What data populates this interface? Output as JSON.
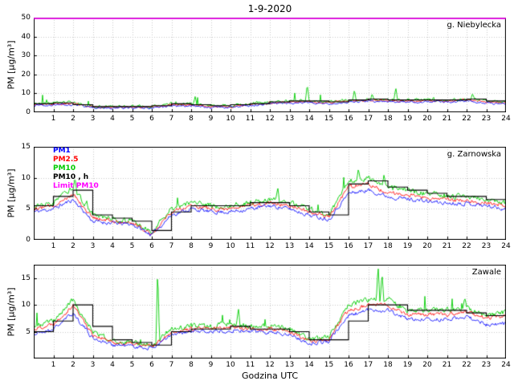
{
  "title": "1-9-2020",
  "xlabel": "Godzina UTC",
  "ylabel": "PM [µg/m³]",
  "legend": {
    "items": [
      {
        "label": "PM1",
        "color": "#0000ff"
      },
      {
        "label": "PM2.5",
        "color": "#ff0000"
      },
      {
        "label": "PM10",
        "color": "#00cc00"
      },
      {
        "label": "PM10 , h",
        "color": "#000000"
      },
      {
        "label": "Limit PM10",
        "color": "#ff00ff"
      }
    ]
  },
  "chart_data": [
    {
      "type": "line",
      "station": "g. Niebylecka",
      "xlim": [
        0,
        24
      ],
      "ylim": [
        0,
        50
      ],
      "yticks": [
        0,
        10,
        20,
        30,
        40,
        50
      ],
      "xticks": [
        1,
        2,
        3,
        4,
        5,
        6,
        7,
        8,
        9,
        10,
        11,
        12,
        13,
        14,
        15,
        16,
        17,
        18,
        19,
        20,
        21,
        22,
        23,
        24
      ],
      "x_hours": [
        0,
        1,
        2,
        3,
        4,
        5,
        6,
        7,
        8,
        9,
        10,
        11,
        12,
        13,
        14,
        15,
        16,
        17,
        18,
        19,
        20,
        21,
        22,
        23,
        24
      ],
      "series": [
        {
          "name": "PM1",
          "color": "#0000ff",
          "values": [
            3.5,
            4,
            4,
            2.4,
            2.4,
            2.4,
            2.4,
            3.5,
            3.5,
            2.7,
            2.7,
            3.5,
            4.5,
            5,
            5,
            4.5,
            5.5,
            6,
            5.5,
            5.5,
            5.5,
            5.5,
            6,
            5,
            4.5
          ]
        },
        {
          "name": "PM2.5",
          "color": "#ff0000",
          "values": [
            4,
            4.5,
            4.5,
            2.7,
            2.7,
            2.7,
            2.7,
            4,
            4,
            3,
            3,
            4,
            5,
            5.5,
            5.5,
            5,
            6,
            6.5,
            6,
            6,
            6,
            6,
            6.5,
            5.5,
            5
          ]
        },
        {
          "name": "PM10",
          "color": "#00cc00",
          "values": [
            4.5,
            5,
            5,
            3,
            3,
            3,
            3,
            4.5,
            4.5,
            3.5,
            3.5,
            4.5,
            5.5,
            6,
            6,
            5.5,
            6.5,
            7,
            6.5,
            6.5,
            6.5,
            6.5,
            7,
            6,
            5.5
          ]
        }
      ],
      "pm10_hourly_step": {
        "name": "PM10 , h",
        "color": "#000000",
        "values": [
          4.5,
          5,
          4,
          3,
          3,
          3,
          3.5,
          4.5,
          4,
          3.5,
          4,
          4.5,
          5.5,
          6,
          6,
          5.5,
          6.5,
          7,
          6.5,
          6.5,
          6.5,
          6.5,
          7,
          6
        ]
      },
      "pm10_spikes": [
        {
          "x": 8.2,
          "v": 8.5
        },
        {
          "x": 13.9,
          "v": 15
        },
        {
          "x": 16.3,
          "v": 12
        },
        {
          "x": 17.2,
          "v": 10
        },
        {
          "x": 18.4,
          "v": 13
        },
        {
          "x": 22.3,
          "v": 10
        }
      ],
      "limit": {
        "name": "Limit PM10",
        "color": "#ff00ff",
        "value": 50
      }
    },
    {
      "type": "line",
      "station": "g. Zarnowska",
      "xlim": [
        0,
        24
      ],
      "ylim": [
        0,
        15
      ],
      "yticks": [
        0,
        5,
        10,
        15
      ],
      "xticks": [
        1,
        2,
        3,
        4,
        5,
        6,
        7,
        8,
        9,
        10,
        11,
        12,
        13,
        14,
        15,
        16,
        17,
        18,
        19,
        20,
        21,
        22,
        23,
        24
      ],
      "x_hours": [
        0,
        1,
        2,
        3,
        4,
        5,
        6,
        7,
        8,
        9,
        10,
        11,
        12,
        13,
        14,
        15,
        16,
        17,
        18,
        19,
        20,
        21,
        22,
        23,
        24
      ],
      "series": [
        {
          "name": "PM1",
          "color": "#0000ff",
          "values": [
            4.5,
            5,
            6.5,
            3,
            2.7,
            2.5,
            0.8,
            4,
            5,
            4.5,
            4.5,
            5,
            5.5,
            5,
            4,
            3.3,
            7.5,
            8,
            7,
            6.6,
            6.2,
            5.9,
            5.9,
            5.5,
            5
          ]
        },
        {
          "name": "PM2.5",
          "color": "#ff0000",
          "values": [
            5,
            5.5,
            7.5,
            3.5,
            3,
            2.8,
            1,
            4.5,
            5.5,
            5,
            5,
            5.5,
            6,
            5.5,
            4.5,
            3.7,
            8.5,
            9,
            7.5,
            7.2,
            6.8,
            6.4,
            6.4,
            6,
            5.5
          ]
        },
        {
          "name": "PM10",
          "color": "#00cc00",
          "values": [
            5.5,
            6,
            8.5,
            4,
            3.3,
            3,
            1.2,
            5,
            6,
            5.5,
            5.5,
            6,
            6.5,
            6,
            5,
            4,
            9.5,
            10,
            8.5,
            8,
            7.5,
            7,
            7,
            6.5,
            6
          ]
        }
      ],
      "pm10_hourly_step": {
        "name": "PM10 , h",
        "color": "#000000",
        "values": [
          5.5,
          7,
          8,
          4,
          3.5,
          3,
          1.5,
          4.5,
          5.5,
          5.5,
          5.5,
          6,
          6,
          5.5,
          4.5,
          4,
          9,
          9.5,
          8.5,
          8,
          7.5,
          7,
          7,
          6.5
        ]
      },
      "pm10_spikes": [
        {
          "x": 2.1,
          "v": 10
        },
        {
          "x": 12.4,
          "v": 8.5
        },
        {
          "x": 16.5,
          "v": 11.5
        },
        {
          "x": 17.8,
          "v": 10.5
        }
      ],
      "limit": {
        "name": "Limit PM10",
        "color": "#ff00ff",
        "value": 50
      }
    },
    {
      "type": "line",
      "station": "Zawale",
      "xlim": [
        0,
        24
      ],
      "ylim": [
        0,
        17.5
      ],
      "yticks": [
        5,
        10,
        15
      ],
      "xticks": [
        1,
        2,
        3,
        4,
        5,
        6,
        7,
        8,
        9,
        10,
        11,
        12,
        13,
        14,
        15,
        16,
        17,
        18,
        19,
        20,
        21,
        22,
        23,
        24
      ],
      "x_hours": [
        0,
        1,
        2,
        3,
        4,
        5,
        6,
        7,
        8,
        9,
        10,
        11,
        12,
        13,
        14,
        15,
        16,
        17,
        18,
        19,
        20,
        21,
        22,
        23,
        24
      ],
      "series": [
        {
          "name": "PM1",
          "color": "#0000ff",
          "values": [
            4.5,
            5.5,
            8.5,
            3.8,
            2.6,
            2.3,
            1.9,
            4.3,
            5,
            5,
            5.3,
            5,
            5,
            4.5,
            2.8,
            3.2,
            8,
            9,
            9,
            7.3,
            7.3,
            7.3,
            7.8,
            6.3,
            6.5
          ]
        },
        {
          "name": "PM2.5",
          "color": "#ff0000",
          "values": [
            5.5,
            6.5,
            10,
            4.5,
            3,
            2.7,
            2.2,
            5,
            5.5,
            5.5,
            6,
            5.5,
            5.5,
            5,
            3.2,
            3.6,
            9,
            10,
            10,
            8.2,
            8.2,
            8.2,
            8.7,
            7.5,
            8
          ]
        },
        {
          "name": "PM10",
          "color": "#00cc00",
          "values": [
            6,
            7,
            11,
            5,
            3.4,
            3,
            2.5,
            5.5,
            6,
            6,
            6.5,
            6,
            6,
            5.5,
            3.5,
            4,
            10,
            11,
            11,
            9,
            9,
            9,
            9.5,
            8,
            8.5
          ]
        }
      ],
      "pm10_hourly_step": {
        "name": "PM10 , h",
        "color": "#000000",
        "values": [
          5,
          7,
          10,
          6,
          3.5,
          3,
          2.5,
          5,
          5.5,
          5.5,
          6,
          5.5,
          5.5,
          5,
          3.5,
          3.5,
          7,
          10,
          10,
          9,
          9,
          9,
          8.5,
          8
        ]
      },
      "pm10_spikes": [
        {
          "x": 6.3,
          "v": 17
        },
        {
          "x": 10.4,
          "v": 9.5
        },
        {
          "x": 17.5,
          "v": 17.5
        },
        {
          "x": 17.7,
          "v": 16
        },
        {
          "x": 21.9,
          "v": 11.5
        }
      ],
      "limit": {
        "name": "Limit PM10",
        "color": "#ff00ff",
        "value": 50
      }
    }
  ]
}
